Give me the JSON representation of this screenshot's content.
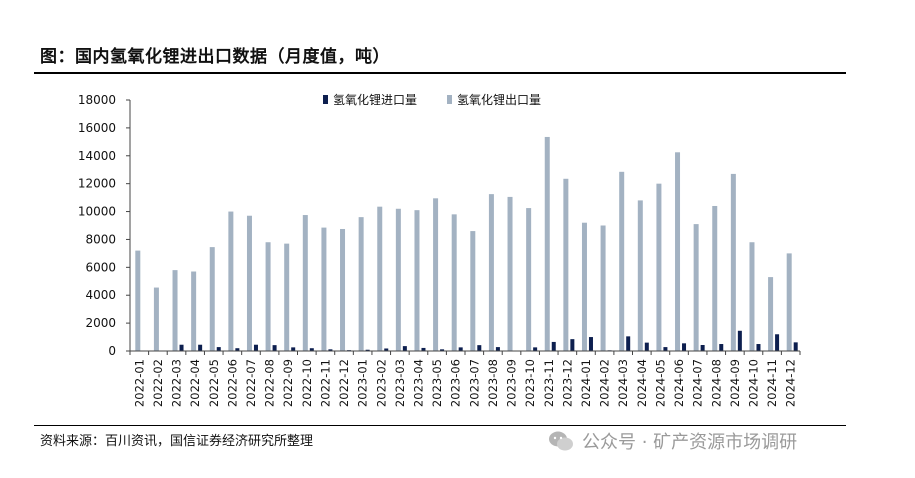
{
  "title": "图：国内氢氧化锂进出口数据（月度值，吨）",
  "source": "资料来源：百川资讯，国信证券经济研究所整理",
  "watermark": "公众号 · 矿产资源市场调研",
  "chart_data": {
    "type": "bar",
    "title": "",
    "xlabel": "",
    "ylabel": "",
    "ylim": [
      0,
      18000
    ],
    "yticks": [
      0,
      2000,
      4000,
      6000,
      8000,
      10000,
      12000,
      14000,
      16000,
      18000
    ],
    "grid": false,
    "legend_position": "top",
    "categories": [
      "2022-01",
      "2022-02",
      "2022-03",
      "2022-04",
      "2022-05",
      "2022-06",
      "2022-07",
      "2022-08",
      "2022-09",
      "2022-10",
      "2022-11",
      "2022-12",
      "2023-01",
      "2023-02",
      "2023-03",
      "2023-04",
      "2023-05",
      "2023-06",
      "2023-07",
      "2023-08",
      "2023-09",
      "2023-10",
      "2023-11",
      "2023-12",
      "2024-01",
      "2024-02",
      "2024-03",
      "2024-04",
      "2024-05",
      "2024-06",
      "2024-07",
      "2024-08",
      "2024-09",
      "2024-10",
      "2024-11",
      "2024-12"
    ],
    "series": [
      {
        "name": "氢氧化锂进口量",
        "color": "#0d1f4f",
        "values": [
          0,
          0,
          450,
          450,
          280,
          200,
          450,
          420,
          260,
          200,
          120,
          60,
          90,
          180,
          350,
          220,
          120,
          260,
          420,
          280,
          30,
          260,
          650,
          850,
          1000,
          50,
          1050,
          600,
          280,
          550,
          430,
          500,
          1450,
          500,
          1200,
          620
        ]
      },
      {
        "name": "氢氧化锂出口量",
        "color": "#a3b2c2",
        "values": [
          7200,
          4550,
          5800,
          5700,
          7450,
          10000,
          9700,
          7800,
          7700,
          9750,
          8850,
          8750,
          9600,
          10350,
          10200,
          10100,
          10950,
          9800,
          8600,
          11250,
          11050,
          10250,
          15350,
          12350,
          9200,
          9000,
          12850,
          10800,
          12000,
          14250,
          9100,
          10400,
          12700,
          7800,
          5300,
          7000
        ]
      }
    ]
  }
}
